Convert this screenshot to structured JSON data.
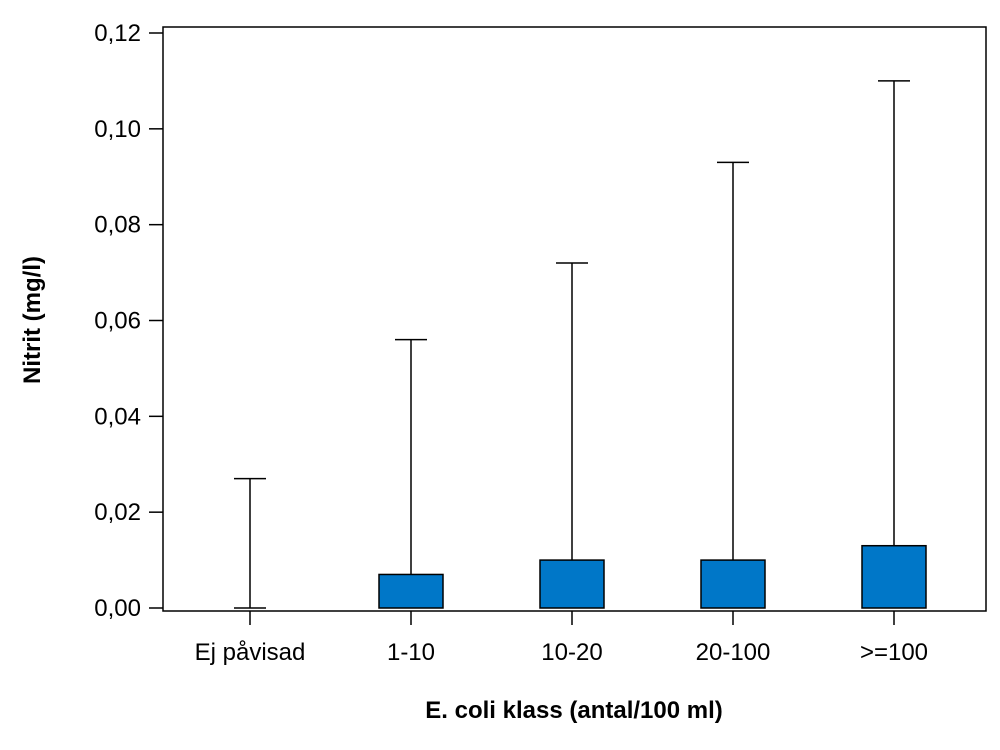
{
  "chart_data": {
    "type": "bar",
    "xlabel": "E. coli klass (antal/100 ml)",
    "ylabel": "Nitrit (mg/l)",
    "ylim": [
      0,
      0.12
    ],
    "yticks": [
      "0,00",
      "0,02",
      "0,04",
      "0,06",
      "0,08",
      "0,10",
      "0,12"
    ],
    "ytick_values": [
      0,
      0.02,
      0.04,
      0.06,
      0.08,
      0.1,
      0.12
    ],
    "categories": [
      "Ej påvisad",
      "1-10",
      "10-20",
      "20-100",
      ">=100"
    ],
    "values": [
      0.0,
      0.007,
      0.01,
      0.01,
      0.013
    ],
    "error_upper": [
      0.027,
      0.056,
      0.072,
      0.093,
      0.11
    ],
    "bar_color": "#0077c8",
    "grid": false,
    "legend": "none"
  }
}
